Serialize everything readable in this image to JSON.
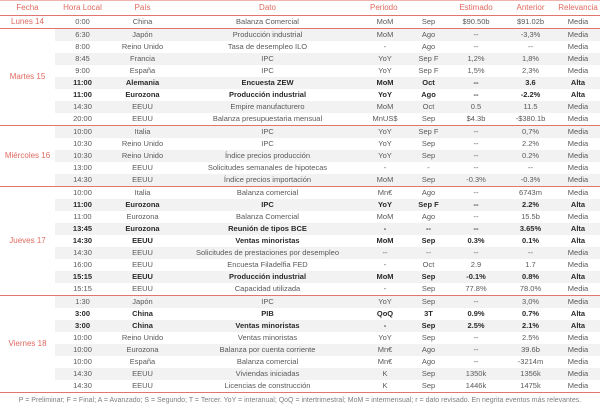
{
  "colors": {
    "accent": "#e06a60",
    "stripe": "#f2f2f2",
    "body_text": "#595959",
    "bold_text": "#2b2b2b"
  },
  "table": {
    "headers": {
      "fecha": "Fecha",
      "hora": "Hora Local",
      "pais": "País",
      "dato": "Dato",
      "periodo": "Periodo",
      "estimado": "Estimado",
      "anterior": "Anterior",
      "relevancia": "Relevancia"
    },
    "groups": [
      {
        "date": "Lunes 14",
        "rows": [
          {
            "hora": "0:00",
            "pais": "China",
            "dato": "Balanza Comercial",
            "periodo": "MoM",
            "mes": "Sep",
            "estimado": "$90.50b",
            "anterior": "$91.02b",
            "relevancia": "Media",
            "bold": false
          }
        ]
      },
      {
        "date": "Martes 15",
        "rows": [
          {
            "hora": "6:30",
            "pais": "Japón",
            "dato": "Producción industrial",
            "periodo": "MoM",
            "mes": "Ago",
            "estimado": "--",
            "anterior": "-3,3%",
            "relevancia": "Media",
            "bold": false
          },
          {
            "hora": "8:00",
            "pais": "Reino Unido",
            "dato": "Tasa de desempleo ILO",
            "periodo": "-",
            "mes": "Ago",
            "estimado": "--",
            "anterior": "--",
            "relevancia": "Media",
            "bold": false
          },
          {
            "hora": "8:45",
            "pais": "Francia",
            "dato": "IPC",
            "periodo": "YoY",
            "mes": "Sep F",
            "estimado": "1,2%",
            "anterior": "1,8%",
            "relevancia": "Media",
            "bold": false
          },
          {
            "hora": "9:00",
            "pais": "España",
            "dato": "IPC",
            "periodo": "YoY",
            "mes": "Sep F",
            "estimado": "1,5%",
            "anterior": "2,3%",
            "relevancia": "Media",
            "bold": false
          },
          {
            "hora": "11:00",
            "pais": "Alemania",
            "dato": "Encuesta ZEW",
            "periodo": "MoM",
            "mes": "Oct",
            "estimado": "--",
            "anterior": "3.6",
            "relevancia": "Alta",
            "bold": true
          },
          {
            "hora": "11:00",
            "pais": "Eurozona",
            "dato": "Producción industrial",
            "periodo": "YoY",
            "mes": "Ago",
            "estimado": "--",
            "anterior": "-2.2%",
            "relevancia": "Alta",
            "bold": true
          },
          {
            "hora": "14:30",
            "pais": "EEUU",
            "dato": "Empire manufacturero",
            "periodo": "MoM",
            "mes": "Oct",
            "estimado": "0.5",
            "anterior": "11.5",
            "relevancia": "Media",
            "bold": false
          },
          {
            "hora": "20:00",
            "pais": "EEUU",
            "dato": "Balanza presupuestaria mensual",
            "periodo": "MnUS$",
            "mes": "Sep",
            "estimado": "$4.3b",
            "anterior": "-$380.1b",
            "relevancia": "Media",
            "bold": false
          }
        ]
      },
      {
        "date": "Miércoles 16",
        "rows": [
          {
            "hora": "10:00",
            "pais": "Italia",
            "dato": "IPC",
            "periodo": "YoY",
            "mes": "Sep F",
            "estimado": "--",
            "anterior": "0,7%",
            "relevancia": "Media",
            "bold": false
          },
          {
            "hora": "10:30",
            "pais": "Reino Unido",
            "dato": "IPC",
            "periodo": "YoY",
            "mes": "Sep",
            "estimado": "--",
            "anterior": "2.2%",
            "relevancia": "Media",
            "bold": false
          },
          {
            "hora": "10:30",
            "pais": "Reino Unido",
            "dato": "Índice precios producción",
            "periodo": "YoY",
            "mes": "Sep",
            "estimado": "--",
            "anterior": "0.2%",
            "relevancia": "Media",
            "bold": false
          },
          {
            "hora": "13:00",
            "pais": "EEUU",
            "dato": "Solicitudes semanales de hipotecas",
            "periodo": "-",
            "mes": "-",
            "estimado": "--",
            "anterior": "--",
            "relevancia": "Media",
            "bold": false
          },
          {
            "hora": "14:30",
            "pais": "EEUU",
            "dato": "Índice precios importación",
            "periodo": "MoM",
            "mes": "Sep",
            "estimado": "-0.3%",
            "anterior": "-0.3%",
            "relevancia": "Media",
            "bold": false
          }
        ]
      },
      {
        "date": "Jueves 17",
        "rows": [
          {
            "hora": "10:00",
            "pais": "Italia",
            "dato": "Balanza comercial",
            "periodo": "Mn€",
            "mes": "Ago",
            "estimado": "--",
            "anterior": "6743m",
            "relevancia": "Media",
            "bold": false
          },
          {
            "hora": "11:00",
            "pais": "Eurozona",
            "dato": "IPC",
            "periodo": "YoY",
            "mes": "Sep F",
            "estimado": "--",
            "anterior": "2.2%",
            "relevancia": "Alta",
            "bold": true
          },
          {
            "hora": "11:00",
            "pais": "Eurozona",
            "dato": "Balanza Comercial",
            "periodo": "MoM",
            "mes": "Ago",
            "estimado": "--",
            "anterior": "15.5b",
            "relevancia": "Media",
            "bold": false
          },
          {
            "hora": "13:45",
            "pais": "Eurozona",
            "dato": "Reunión de tipos BCE",
            "periodo": "-",
            "mes": "--",
            "estimado": "--",
            "anterior": "3.65%",
            "relevancia": "Alta",
            "bold": true
          },
          {
            "hora": "14:30",
            "pais": "EEUU",
            "dato": "Ventas minoristas",
            "periodo": "MoM",
            "mes": "Sep",
            "estimado": "0.3%",
            "anterior": "0.1%",
            "relevancia": "Alta",
            "bold": true
          },
          {
            "hora": "14:30",
            "pais": "EEUU",
            "dato": "Solicitudes de prestaciones por desempleo",
            "periodo": "--",
            "mes": "--",
            "estimado": "--",
            "anterior": "--",
            "relevancia": "Media",
            "bold": false
          },
          {
            "hora": "16:00",
            "pais": "EEUU",
            "dato": "Encuesta Filadelfia FED",
            "periodo": "-",
            "mes": "Oct",
            "estimado": "2.9",
            "anterior": "1.7",
            "relevancia": "Media",
            "bold": false
          },
          {
            "hora": "15:15",
            "pais": "EEUU",
            "dato": "Producción industrial",
            "periodo": "MoM",
            "mes": "Sep",
            "estimado": "-0.1%",
            "anterior": "0.8%",
            "relevancia": "Alta",
            "bold": true
          },
          {
            "hora": "15:15",
            "pais": "EEUU",
            "dato": "Capacidad utilizada",
            "periodo": "-",
            "mes": "Sep",
            "estimado": "77.8%",
            "anterior": "78.0%",
            "relevancia": "Media",
            "bold": false
          }
        ]
      },
      {
        "date": "Viernes 18",
        "rows": [
          {
            "hora": "1:30",
            "pais": "Japón",
            "dato": "IPC",
            "periodo": "YoY",
            "mes": "Sep",
            "estimado": "--",
            "anterior": "3,0%",
            "relevancia": "Media",
            "bold": false
          },
          {
            "hora": "3:00",
            "pais": "China",
            "dato": "PIB",
            "periodo": "QoQ",
            "mes": "3T",
            "estimado": "0.9%",
            "anterior": "0.7%",
            "relevancia": "Alta",
            "bold": true
          },
          {
            "hora": "3:00",
            "pais": "China",
            "dato": "Ventas minoristas",
            "periodo": "-",
            "mes": "Sep",
            "estimado": "2.5%",
            "anterior": "2.1%",
            "relevancia": "Alta",
            "bold": true
          },
          {
            "hora": "10:00",
            "pais": "Reino Unido",
            "dato": "Ventas minoristas",
            "periodo": "YoY",
            "mes": "Sep",
            "estimado": "--",
            "anterior": "2.5%",
            "relevancia": "Media",
            "bold": false
          },
          {
            "hora": "10:00",
            "pais": "Eurozona",
            "dato": "Balanza por cuenta corriente",
            "periodo": "Mn€",
            "mes": "Ago",
            "estimado": "--",
            "anterior": "39.6b",
            "relevancia": "Media",
            "bold": false
          },
          {
            "hora": "10:00",
            "pais": "España",
            "dato": "Balanza comercial",
            "periodo": "Mn€",
            "mes": "Ago",
            "estimado": "--",
            "anterior": "-3214m",
            "relevancia": "Media",
            "bold": false
          },
          {
            "hora": "14:30",
            "pais": "EEUU",
            "dato": "Viviendas iniciadas",
            "periodo": "K",
            "mes": "Sep",
            "estimado": "1350k",
            "anterior": "1356k",
            "relevancia": "Media",
            "bold": false
          },
          {
            "hora": "14:30",
            "pais": "EEUU",
            "dato": "Licencias de construcción",
            "periodo": "K",
            "mes": "Sep",
            "estimado": "1446k",
            "anterior": "1475k",
            "relevancia": "Media",
            "bold": false
          }
        ]
      }
    ]
  },
  "footer": {
    "legend": "P = Preliminar; F = Final; A = Avanzado; S = Segundo; T = Tercer.  YoY = interanual; QoQ = intertrimestral; MoM = intermensual; r = dato revisado. En negrita eventos más relevantes."
  }
}
